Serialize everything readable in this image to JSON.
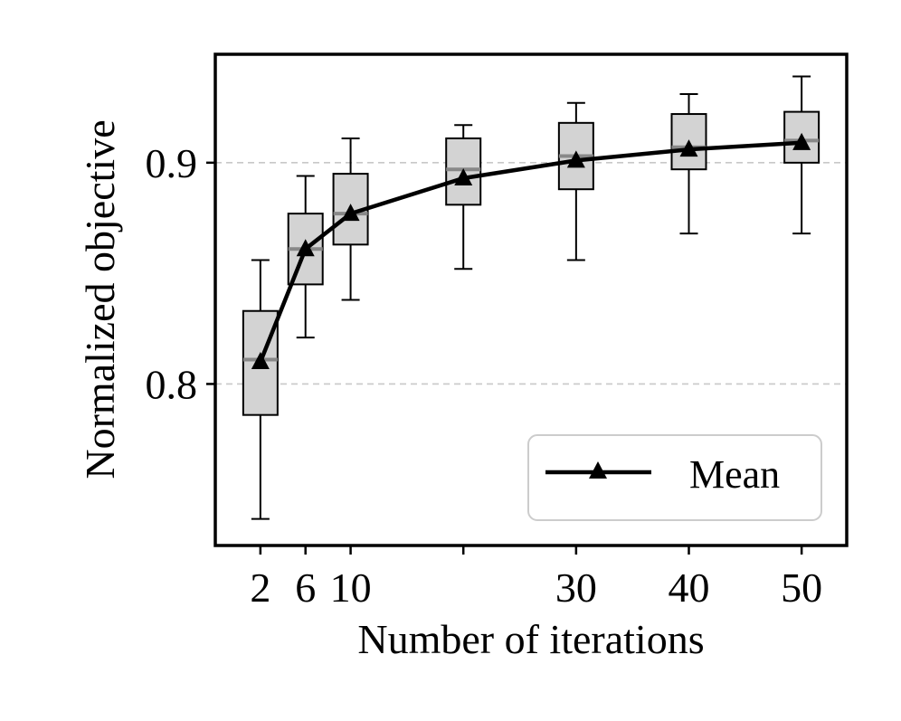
{
  "chart_data": {
    "type": "box",
    "title": "",
    "xlabel": "Number of iterations",
    "ylabel": "Normalized objective",
    "x_ticks": [
      2,
      6,
      10,
      20,
      30,
      40,
      50
    ],
    "x_tick_labels": [
      "2",
      "6",
      "10",
      "",
      "30",
      "40",
      "50"
    ],
    "xlim": [
      -2,
      54
    ],
    "ylim": [
      0.727,
      0.949
    ],
    "y_ticks": [
      0.8,
      0.9
    ],
    "y_tick_labels": [
      "0.8",
      "0.9"
    ],
    "grid": "y-dashed",
    "legend": {
      "position": "bottom-right",
      "entries": [
        "Mean"
      ]
    },
    "boxes": [
      {
        "x": 2,
        "whisker_low": 0.739,
        "q1": 0.786,
        "median": 0.811,
        "q3": 0.833,
        "whisker_high": 0.856
      },
      {
        "x": 6,
        "whisker_low": 0.821,
        "q1": 0.845,
        "median": 0.861,
        "q3": 0.877,
        "whisker_high": 0.894
      },
      {
        "x": 10,
        "whisker_low": 0.838,
        "q1": 0.863,
        "median": 0.877,
        "q3": 0.895,
        "whisker_high": 0.911
      },
      {
        "x": 20,
        "whisker_low": 0.852,
        "q1": 0.881,
        "median": 0.897,
        "q3": 0.911,
        "whisker_high": 0.917
      },
      {
        "x": 30,
        "whisker_low": 0.856,
        "q1": 0.888,
        "median": 0.903,
        "q3": 0.918,
        "whisker_high": 0.927
      },
      {
        "x": 40,
        "whisker_low": 0.868,
        "q1": 0.897,
        "median": 0.907,
        "q3": 0.922,
        "whisker_high": 0.931
      },
      {
        "x": 50,
        "whisker_low": 0.868,
        "q1": 0.9,
        "median": 0.91,
        "q3": 0.923,
        "whisker_high": 0.939
      }
    ],
    "series": [
      {
        "name": "Mean",
        "marker": "triangle",
        "x": [
          2,
          6,
          10,
          20,
          30,
          40,
          50
        ],
        "values": [
          0.81,
          0.861,
          0.877,
          0.893,
          0.901,
          0.906,
          0.909
        ]
      }
    ],
    "colors": {
      "box_fill": "#d3d3d3",
      "median": "#888888",
      "grid": "#c8c8c8",
      "line": "#000000"
    }
  }
}
